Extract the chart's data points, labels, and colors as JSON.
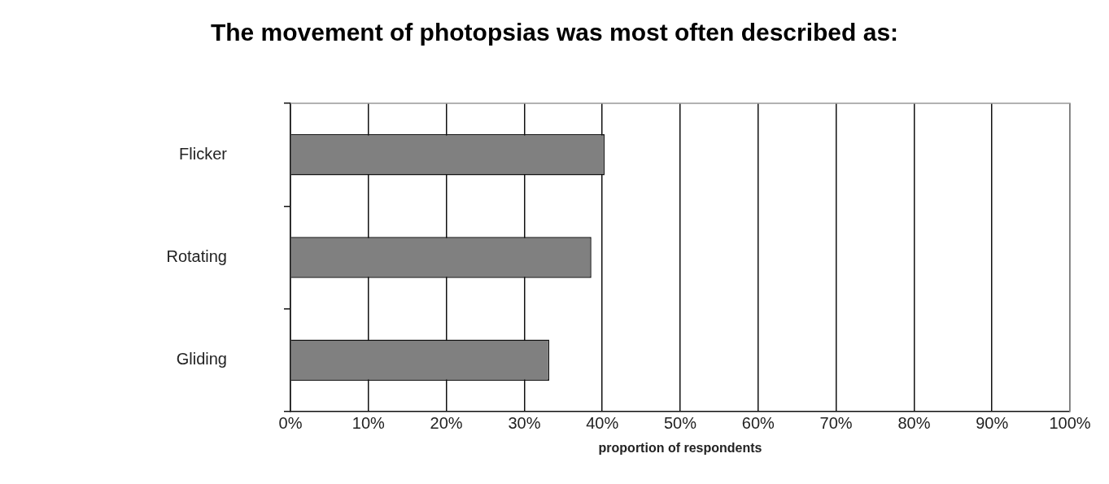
{
  "chart_data": {
    "type": "bar",
    "orientation": "horizontal",
    "title": "The movement of photopsias was most often described as:",
    "xlabel": "proportion of respondents",
    "categories": [
      "Flicker",
      "Rotating",
      "Gliding"
    ],
    "values": [
      40.3,
      38.6,
      33.2
    ],
    "color": "#808080",
    "xlim": [
      0,
      100
    ],
    "xticks": [
      {
        "value": 0,
        "label": "0%"
      },
      {
        "value": 10,
        "label": "10%"
      },
      {
        "value": 20,
        "label": "20%"
      },
      {
        "value": 30,
        "label": "30%"
      },
      {
        "value": 40,
        "label": "40%"
      },
      {
        "value": 50,
        "label": "50%"
      },
      {
        "value": 60,
        "label": "60%"
      },
      {
        "value": 70,
        "label": "70%"
      },
      {
        "value": 80,
        "label": "80%"
      },
      {
        "value": 90,
        "label": "90%"
      },
      {
        "value": 100,
        "label": "100%"
      }
    ],
    "grid": "x",
    "legend": false
  }
}
